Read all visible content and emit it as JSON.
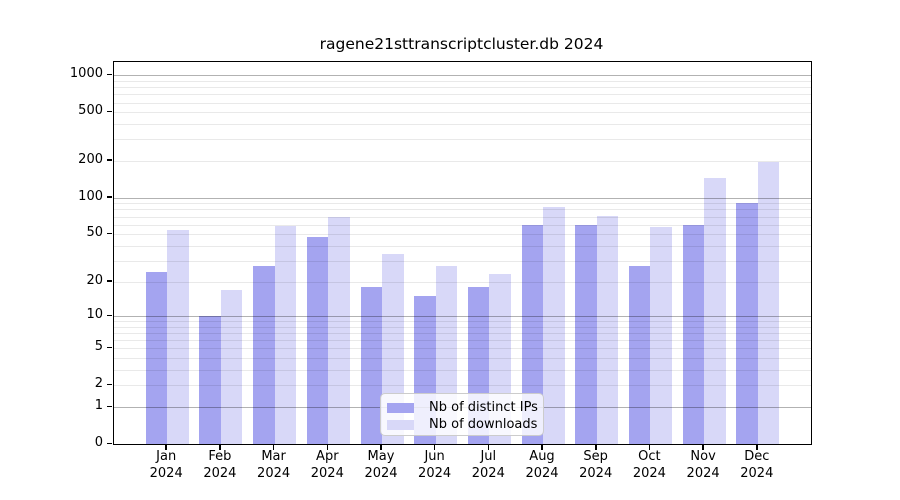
{
  "title": "ragene21sttranscriptcluster.db 2024",
  "chart_data": {
    "type": "bar",
    "title": "ragene21sttranscriptcluster.db 2024",
    "categories": [
      "Jan",
      "Feb",
      "Mar",
      "Apr",
      "May",
      "Jun",
      "Jul",
      "Aug",
      "Sep",
      "Oct",
      "Nov",
      "Dec"
    ],
    "category_year": "2024",
    "series": [
      {
        "name": "Nb of distinct IPs",
        "color": "#a4a4f0",
        "values": [
          24,
          10,
          27,
          47,
          18,
          15,
          18,
          60,
          60,
          27,
          60,
          91
        ]
      },
      {
        "name": "Nb of downloads",
        "color": "#d8d8f8",
        "values": [
          54,
          17,
          59,
          70,
          34,
          27,
          23,
          84,
          71,
          57,
          146,
          196
        ]
      }
    ],
    "xlabel": "",
    "ylabel": "",
    "y_ticks": [
      0,
      1,
      2,
      5,
      10,
      20,
      50,
      100,
      200,
      500,
      1000
    ],
    "y_major_gridlines": [
      1,
      10,
      100,
      1000
    ],
    "y_scale": "log1p",
    "ylim": [
      0,
      1290
    ],
    "grid": true,
    "legend_position": "inside-bottom-center",
    "colors": {
      "background": "#ffffff",
      "axis": "#000000",
      "major_grid": "#b3b3b3",
      "minor_grid": "#eaeaea"
    }
  }
}
